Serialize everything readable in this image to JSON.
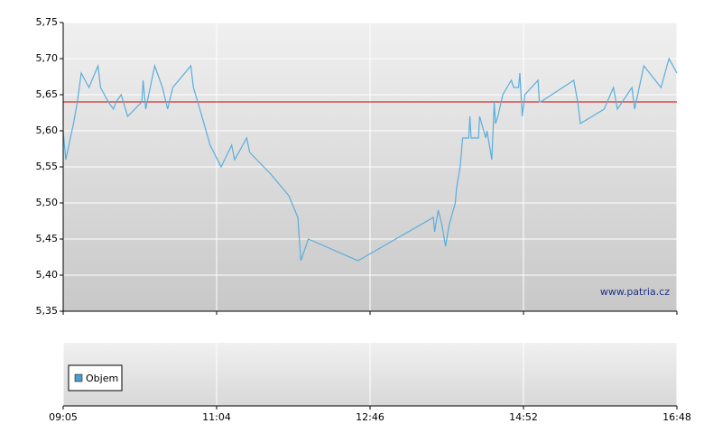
{
  "chart_data": [
    {
      "type": "line",
      "x": [
        "09:05",
        "09:07",
        "09:13",
        "09:16",
        "09:19",
        "09:25",
        "09:32",
        "09:34",
        "09:40",
        "09:44",
        "09:46",
        "09:50",
        "09:55",
        "10:06",
        "10:07",
        "10:09",
        "10:16",
        "10:22",
        "10:26",
        "10:30",
        "10:44",
        "10:46",
        "10:51",
        "10:59",
        "11:07",
        "11:14",
        "11:16",
        "11:24",
        "11:26",
        "11:40",
        "11:52",
        "11:58",
        "12:00",
        "12:05",
        "12:38",
        "13:38",
        "13:39",
        "13:42",
        "13:45",
        "13:48",
        "13:51",
        "13:56",
        "13:57",
        "14:00",
        "14:02",
        "14:07",
        "14:08",
        "14:09",
        "14:15",
        "14:16",
        "14:21",
        "14:22",
        "14:24",
        "14:26",
        "14:28",
        "14:29",
        "14:31",
        "14:35",
        "14:42",
        "14:44",
        "14:48",
        "14:49",
        "14:51",
        "14:53",
        "15:03",
        "15:04",
        "15:05",
        "15:30",
        "15:33",
        "15:35",
        "15:53",
        "16:00",
        "16:03",
        "16:14",
        "16:16",
        "16:23",
        "16:36",
        "16:42",
        "16:48"
      ],
      "series": [
        {
          "color": "#5aaedc",
          "values": [
            5.6,
            5.56,
            5.61,
            5.64,
            5.68,
            5.66,
            5.69,
            5.66,
            5.64,
            5.63,
            5.64,
            5.65,
            5.62,
            5.64,
            5.67,
            5.63,
            5.69,
            5.66,
            5.63,
            5.66,
            5.69,
            5.66,
            5.63,
            5.58,
            5.55,
            5.58,
            5.56,
            5.59,
            5.57,
            5.54,
            5.51,
            5.48,
            5.42,
            5.45,
            5.42,
            5.48,
            5.46,
            5.49,
            5.47,
            5.44,
            5.47,
            5.5,
            5.52,
            5.55,
            5.59,
            5.59,
            5.62,
            5.59,
            5.59,
            5.62,
            5.59,
            5.6,
            5.58,
            5.56,
            5.64,
            5.61,
            5.62,
            5.65,
            5.67,
            5.66,
            5.66,
            5.68,
            5.62,
            5.65,
            5.67,
            5.64,
            5.64,
            5.67,
            5.64,
            5.61,
            5.63,
            5.66,
            5.63,
            5.66,
            5.63,
            5.69,
            5.66,
            5.7,
            5.68
          ]
        }
      ],
      "reference_line": {
        "value": 5.64,
        "color": "#cc0000"
      },
      "ylim": [
        5.35,
        5.75
      ],
      "yticks": [
        {
          "value": 5.35,
          "label": "5,35"
        },
        {
          "value": 5.4,
          "label": "5,40"
        },
        {
          "value": 5.45,
          "label": "5,45"
        },
        {
          "value": 5.5,
          "label": "5,50"
        },
        {
          "value": 5.55,
          "label": "5,55"
        },
        {
          "value": 5.6,
          "label": "5,60"
        },
        {
          "value": 5.65,
          "label": "5,65"
        },
        {
          "value": 5.7,
          "label": "5,70"
        },
        {
          "value": 5.75,
          "label": "5,75"
        }
      ],
      "xlim": [
        "09:05",
        "16:48"
      ],
      "xticks": [
        "09:05",
        "11:04",
        "12:46",
        "14:52",
        "16:48"
      ],
      "grid": true,
      "watermark": "www.patria.cz"
    },
    {
      "type": "bar",
      "series": [
        {
          "name": "Objem",
          "color": "#4a9fd0",
          "values": []
        }
      ]
    }
  ]
}
